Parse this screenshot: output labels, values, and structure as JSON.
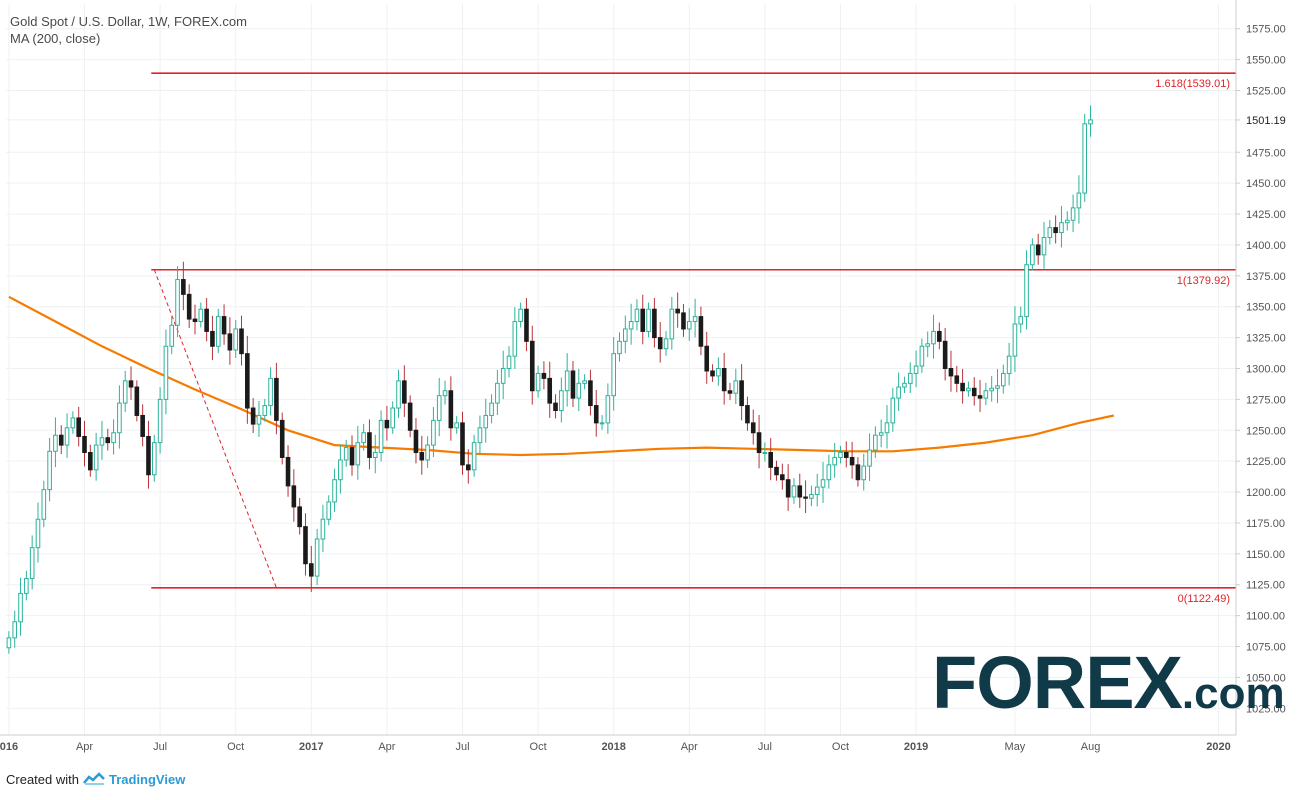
{
  "title": "Gold Spot / U.S. Dollar, 1W, FOREX.com",
  "subtitle": "MA (200, close)",
  "footer": {
    "created_with": "Created with",
    "brand": "TradingView"
  },
  "watermark": {
    "main": "FOREX",
    "suffix": ".com"
  },
  "colors": {
    "up": "#2bb39b",
    "down": "#1a1a1a",
    "ma": "#f57c00",
    "fib": "#e0242a",
    "fib_label": "#e0242a",
    "grid": "#eef1f4"
  },
  "chart_data": {
    "type": "candlestick",
    "title": "Gold Spot / U.S. Dollar, 1W, FOREX.com",
    "y_axis": {
      "min": 1005,
      "max": 1595,
      "ticks": [
        "1025.00",
        "1050.00",
        "1075.00",
        "1100.00",
        "1125.00",
        "1150.00",
        "1175.00",
        "1200.00",
        "1225.00",
        "1250.00",
        "1275.00",
        "1300.00",
        "1325.00",
        "1350.00",
        "1375.00",
        "1400.00",
        "1425.00",
        "1450.00",
        "1475.00",
        "1501.19",
        "1525.00",
        "1550.00",
        "1575.00"
      ],
      "last_price": "1501.19"
    },
    "x_axis": {
      "ticks": [
        {
          "label": "016",
          "t": 0
        },
        {
          "label": "Apr",
          "t": 13
        },
        {
          "label": "Jul",
          "t": 26
        },
        {
          "label": "Oct",
          "t": 39
        },
        {
          "label": "2017",
          "t": 52
        },
        {
          "label": "Apr",
          "t": 65
        },
        {
          "label": "Jul",
          "t": 78
        },
        {
          "label": "Oct",
          "t": 91
        },
        {
          "label": "2018",
          "t": 104
        },
        {
          "label": "Apr",
          "t": 117
        },
        {
          "label": "Jul",
          "t": 130
        },
        {
          "label": "Oct",
          "t": 143
        },
        {
          "label": "2019",
          "t": 156
        },
        {
          "label": "May",
          "t": 173
        },
        {
          "label": "Aug",
          "t": 186
        },
        {
          "label": "2020",
          "t": 208
        }
      ],
      "weeks_total": 211
    },
    "closes": [
      1082,
      1095,
      1118,
      1130,
      1155,
      1178,
      1202,
      1233,
      1246,
      1238,
      1252,
      1260,
      1245,
      1232,
      1218,
      1238,
      1244,
      1240,
      1248,
      1272,
      1290,
      1285,
      1262,
      1245,
      1214,
      1240,
      1275,
      1318,
      1335,
      1372,
      1360,
      1340,
      1338,
      1348,
      1330,
      1318,
      1342,
      1328,
      1315,
      1332,
      1312,
      1268,
      1255,
      1262,
      1270,
      1292,
      1258,
      1228,
      1205,
      1188,
      1172,
      1142,
      1132,
      1162,
      1178,
      1192,
      1210,
      1226,
      1236,
      1222,
      1240,
      1248,
      1228,
      1232,
      1258,
      1252,
      1268,
      1290,
      1272,
      1250,
      1232,
      1226,
      1238,
      1258,
      1278,
      1282,
      1252,
      1256,
      1222,
      1218,
      1240,
      1252,
      1262,
      1272,
      1288,
      1300,
      1310,
      1338,
      1348,
      1322,
      1282,
      1296,
      1292,
      1272,
      1266,
      1282,
      1298,
      1276,
      1288,
      1290,
      1270,
      1256,
      1256,
      1278,
      1312,
      1322,
      1332,
      1338,
      1348,
      1330,
      1348,
      1325,
      1316,
      1324,
      1348,
      1345,
      1332,
      1338,
      1342,
      1318,
      1298,
      1294,
      1300,
      1282,
      1280,
      1290,
      1270,
      1256,
      1248,
      1232,
      1232,
      1220,
      1214,
      1210,
      1196,
      1205,
      1196,
      1195,
      1198,
      1204,
      1210,
      1222,
      1228,
      1232,
      1228,
      1222,
      1210,
      1221,
      1234,
      1246,
      1248,
      1256,
      1276,
      1285,
      1288,
      1296,
      1302,
      1318,
      1320,
      1330,
      1322,
      1300,
      1294,
      1288,
      1282,
      1284,
      1278,
      1276,
      1282,
      1284,
      1286,
      1296,
      1310,
      1336,
      1342,
      1384,
      1400,
      1392,
      1406,
      1414,
      1410,
      1418,
      1420,
      1430,
      1442,
      1498,
      1501.19
    ],
    "ma200": [
      [
        0,
        1358
      ],
      [
        8,
        1338
      ],
      [
        16,
        1318
      ],
      [
        24,
        1300
      ],
      [
        32,
        1283
      ],
      [
        40,
        1267
      ],
      [
        48,
        1250
      ],
      [
        56,
        1238
      ],
      [
        64,
        1236
      ],
      [
        72,
        1234
      ],
      [
        80,
        1231
      ],
      [
        88,
        1230
      ],
      [
        96,
        1231
      ],
      [
        104,
        1233
      ],
      [
        112,
        1235
      ],
      [
        120,
        1236
      ],
      [
        128,
        1235
      ],
      [
        136,
        1234
      ],
      [
        144,
        1233
      ],
      [
        152,
        1233
      ],
      [
        160,
        1236
      ],
      [
        168,
        1240
      ],
      [
        176,
        1246
      ],
      [
        184,
        1256
      ],
      [
        190,
        1262
      ]
    ],
    "fib_levels": [
      {
        "label": "1.618(1539.01)",
        "ratio": "1.618",
        "price": 1539.01
      },
      {
        "label": "1(1379.92)",
        "ratio": "1",
        "price": 1379.92
      },
      {
        "label": "0(1122.49)",
        "ratio": "0",
        "price": 1122.49
      }
    ],
    "fib_trend": {
      "from": {
        "t": 25,
        "price": 1379.92
      },
      "to": {
        "t": 46,
        "price": 1122.49
      }
    },
    "fib_start_t": 25
  }
}
